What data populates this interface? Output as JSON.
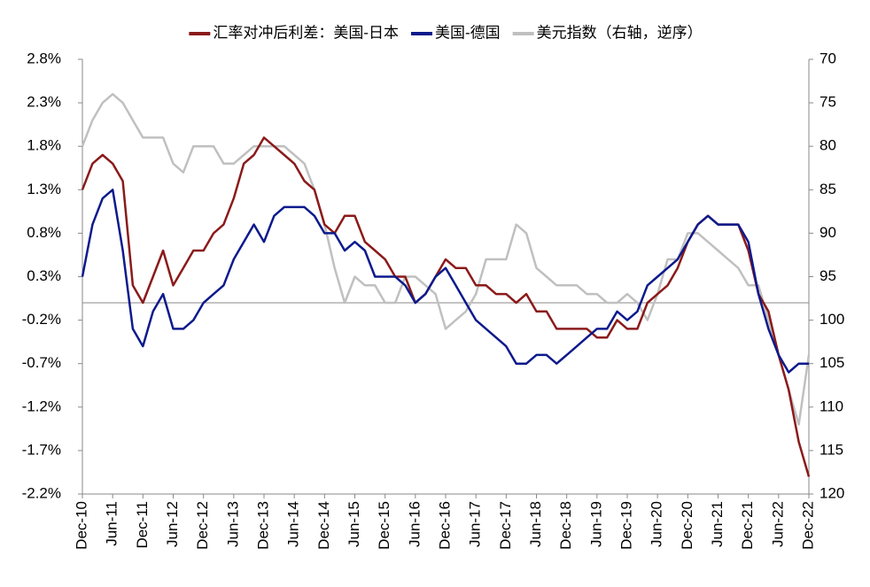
{
  "chart_data": {
    "type": "line",
    "categories": [
      "Dec-10",
      null,
      null,
      "Jun-11",
      null,
      null,
      "Dec-11",
      null,
      null,
      "Jun-12",
      null,
      null,
      "Dec-12",
      null,
      null,
      "Jun-13",
      null,
      null,
      "Dec-13",
      null,
      null,
      "Jun-14",
      null,
      null,
      "Dec-14",
      null,
      null,
      "Jun-15",
      null,
      null,
      "Dec-15",
      null,
      null,
      "Jun-16",
      null,
      null,
      "Dec-16",
      null,
      null,
      "Jun-17",
      null,
      null,
      "Dec-17",
      null,
      null,
      "Jun-18",
      null,
      null,
      "Dec-18",
      null,
      null,
      "Jun-19",
      null,
      null,
      "Dec-19",
      null,
      null,
      "Jun-20",
      null,
      null,
      "Dec-20",
      null,
      null,
      "Jun-21",
      null,
      null,
      "Dec-21",
      null,
      null,
      "Jun-22",
      null,
      null,
      "Dec-22"
    ],
    "series": [
      {
        "name": "汇率对冲后利差：美国-日本",
        "color": "#8b1a1a",
        "values": [
          1.3,
          1.6,
          1.7,
          1.6,
          1.4,
          0.2,
          0.0,
          0.3,
          0.6,
          0.2,
          0.4,
          0.6,
          0.6,
          0.8,
          0.9,
          1.2,
          1.6,
          1.7,
          1.9,
          1.8,
          1.7,
          1.6,
          1.4,
          1.3,
          0.9,
          0.8,
          1.0,
          1.0,
          0.7,
          0.6,
          0.5,
          0.3,
          0.3,
          0.0,
          0.1,
          0.3,
          0.5,
          0.4,
          0.4,
          0.2,
          0.2,
          0.1,
          0.1,
          0.0,
          0.1,
          -0.1,
          -0.1,
          -0.3,
          -0.3,
          -0.3,
          -0.3,
          -0.4,
          -0.4,
          -0.2,
          -0.3,
          -0.3,
          0.0,
          0.1,
          0.2,
          0.4,
          0.7,
          0.9,
          1.0,
          0.9,
          0.9,
          0.9,
          0.6,
          0.1,
          -0.1,
          -0.6,
          -1.0,
          -1.6,
          -2.0
        ]
      },
      {
        "name": "美国-德国",
        "color": "#0d1a8c",
        "values": [
          0.3,
          0.9,
          1.2,
          1.3,
          0.6,
          -0.3,
          -0.5,
          -0.1,
          0.1,
          -0.3,
          -0.3,
          -0.2,
          0.0,
          0.1,
          0.2,
          0.5,
          0.7,
          0.9,
          0.7,
          1.0,
          1.1,
          1.1,
          1.1,
          1.0,
          0.8,
          0.8,
          0.6,
          0.7,
          0.6,
          0.3,
          0.3,
          0.3,
          0.2,
          0.0,
          0.1,
          0.3,
          0.4,
          0.2,
          0.0,
          -0.2,
          -0.3,
          -0.4,
          -0.5,
          -0.7,
          -0.7,
          -0.6,
          -0.6,
          -0.7,
          -0.6,
          -0.5,
          -0.4,
          -0.3,
          -0.3,
          -0.1,
          -0.2,
          -0.1,
          0.2,
          0.3,
          0.4,
          0.5,
          0.7,
          0.9,
          1.0,
          0.9,
          0.9,
          0.9,
          0.7,
          0.1,
          -0.3,
          -0.6,
          -0.8,
          -0.7,
          -0.7
        ]
      },
      {
        "name": "美元指数（右轴，逆序）",
        "color": "#c0c0c0",
        "axis": "y2",
        "values": [
          80,
          77,
          75,
          74,
          75,
          77,
          79,
          79,
          79,
          82,
          83,
          80,
          80,
          80,
          82,
          82,
          81,
          80,
          80,
          80,
          80,
          81,
          82,
          85,
          89,
          94,
          98,
          95,
          96,
          96,
          98,
          98,
          95,
          95,
          96,
          97,
          101,
          100,
          99,
          97,
          93,
          93,
          93,
          89,
          90,
          94,
          95,
          96,
          96,
          96,
          97,
          97,
          98,
          98,
          97,
          98,
          100,
          97,
          93,
          93,
          90,
          90,
          91,
          92,
          93,
          94,
          96,
          96,
          100,
          104,
          108,
          112,
          104
        ]
      }
    ],
    "ylim": [
      -2.2,
      2.8
    ],
    "yticks": [
      {
        "value": 2.8,
        "label": "2.8%"
      },
      {
        "value": 2.3,
        "label": "2.3%"
      },
      {
        "value": 1.8,
        "label": "1.8%"
      },
      {
        "value": 1.3,
        "label": "1.3%"
      },
      {
        "value": 0.8,
        "label": "0.8%"
      },
      {
        "value": 0.3,
        "label": "0.3%"
      },
      {
        "value": -0.2,
        "label": "-0.2%"
      },
      {
        "value": -0.7,
        "label": "-0.7%"
      },
      {
        "value": -1.2,
        "label": "-1.2%"
      },
      {
        "value": -1.7,
        "label": "-1.7%"
      },
      {
        "value": -2.2,
        "label": "-2.2%"
      }
    ],
    "negative_ytick_color": "#ff0000",
    "y2lim": [
      70,
      120
    ],
    "y2_reversed": true,
    "y2ticks": [
      70,
      75,
      80,
      85,
      90,
      95,
      100,
      105,
      110,
      115,
      120
    ],
    "legend": "top"
  }
}
